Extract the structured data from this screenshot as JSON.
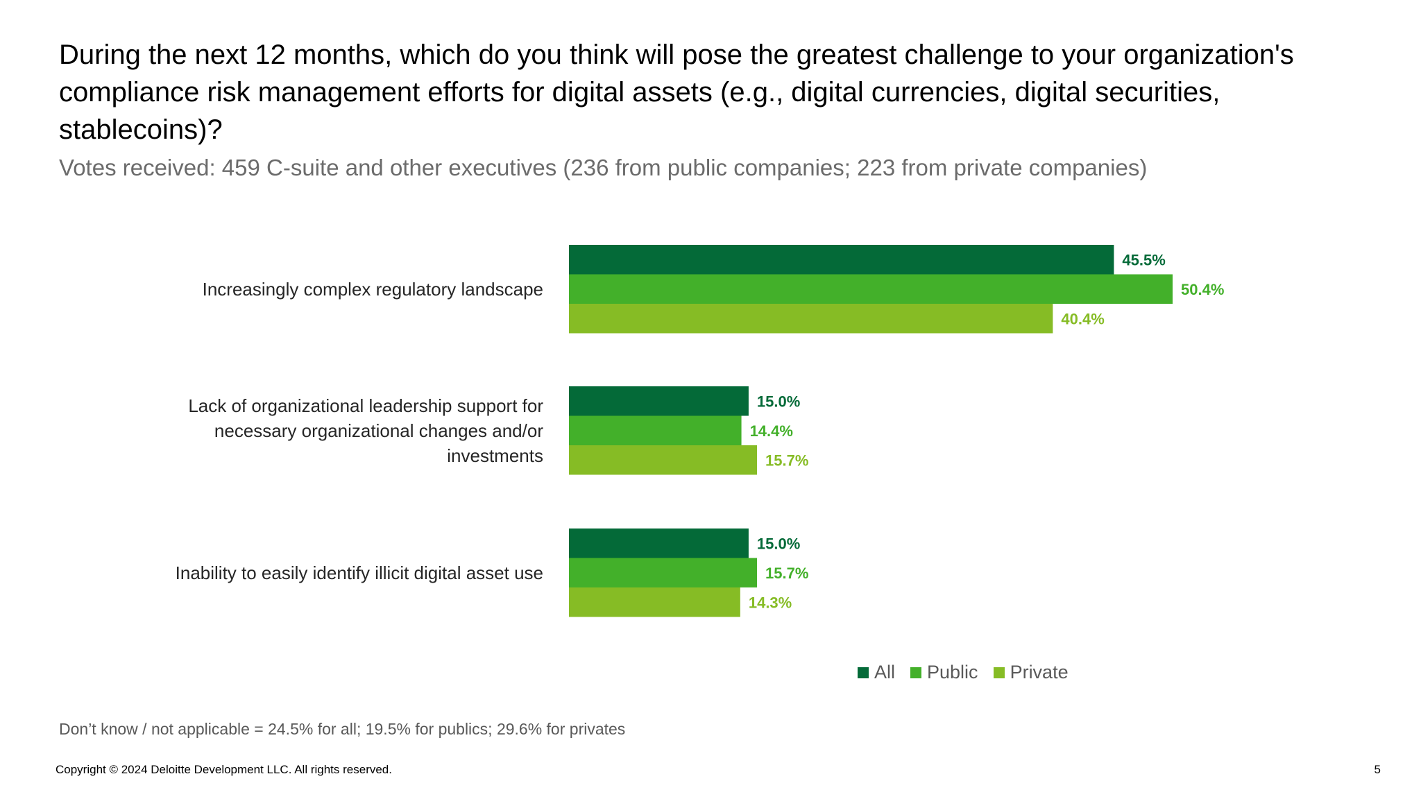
{
  "slide": {
    "title": "During the next 12 months, which do you think will pose the greatest challenge to your organization's compliance risk management efforts for digital assets (e.g., digital currencies, digital securities, stablecoins)?",
    "subtitle": "Votes received: 459 C-suite and other executives (236 from public companies; 223 from private companies)",
    "footnote": "Don’t know / not applicable = 24.5% for all; 19.5% for publics; 29.6% for privates",
    "copyright": "Copyright © 2024 Deloitte Development LLC. All rights reserved.",
    "page_number": "5"
  },
  "chart_data": {
    "type": "bar",
    "orientation": "horizontal",
    "categories": [
      [
        "Increasingly complex regulatory landscape"
      ],
      [
        "Lack of organizational leadership support for",
        "necessary organizational changes and/or",
        "investments"
      ],
      [
        "Inability to easily identify illicit digital asset use"
      ]
    ],
    "series": [
      {
        "name": "All",
        "color": "#046a38",
        "values": [
          45.5,
          15.0,
          15.0
        ],
        "labels": [
          "45.5%",
          "15.0%",
          "15.0%"
        ]
      },
      {
        "name": "Public",
        "color": "#43b02a",
        "values": [
          50.4,
          14.4,
          15.7
        ],
        "labels": [
          "50.4%",
          "14.4%",
          "15.7%"
        ]
      },
      {
        "name": "Private",
        "color": "#86bc25",
        "values": [
          40.4,
          15.7,
          14.3
        ],
        "labels": [
          "40.4%",
          "15.7%",
          "14.3%"
        ]
      }
    ],
    "xlim": [
      0,
      60
    ],
    "grid": false,
    "legend": "bottom-right"
  }
}
